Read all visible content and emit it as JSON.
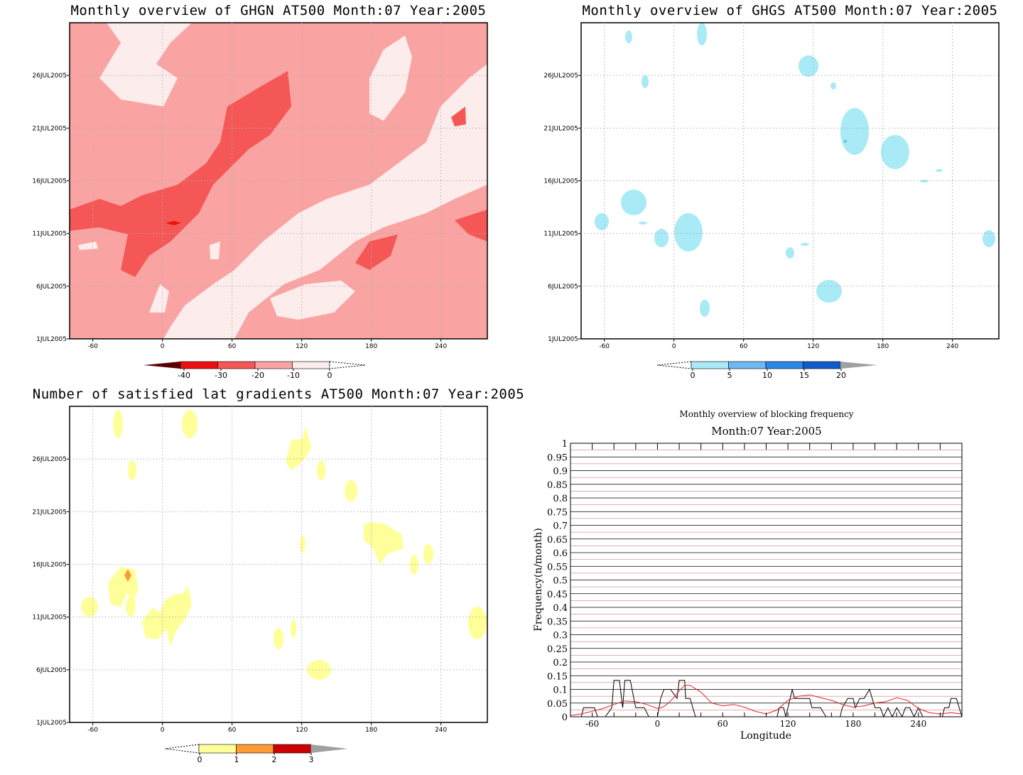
{
  "colors": {
    "ghgn": [
      "#fdecec",
      "#f9a3a3",
      "#f55656",
      "#ee1010",
      "#5a0000"
    ],
    "ghgs": [
      "#a8eaf6",
      "#6fb8f2",
      "#2c86e6",
      "#0f5cc8",
      "#a0a0a0"
    ],
    "grad": [
      "#ffff99",
      "#ff9933",
      "#cc0000",
      "#a0a0a0"
    ],
    "freq_series": [
      "#000000",
      "#e02020"
    ]
  },
  "chart_data": [
    {
      "type": "heatmap",
      "title": "Monthly overview of GHGN AT500 Month:07 Year:2005",
      "x_ticks": [
        "-60",
        "0",
        "60",
        "120",
        "180",
        "240"
      ],
      "y_ticks": [
        "1JUL2005",
        "6JUL2005",
        "11JUL2005",
        "16JUL2005",
        "21JUL2005",
        "26JUL2005"
      ],
      "xlim": [
        -80,
        280
      ],
      "colorbar": [
        "-40",
        "-30",
        "-20",
        "-10",
        "0"
      ]
    },
    {
      "type": "heatmap",
      "title": "Monthly overview of GHGS AT500 Month:07 Year:2005",
      "x_ticks": [
        "-60",
        "0",
        "60",
        "120",
        "180",
        "240"
      ],
      "y_ticks": [
        "1JUL2005",
        "6JUL2005",
        "11JUL2005",
        "16JUL2005",
        "21JUL2005",
        "26JUL2005"
      ],
      "xlim": [
        -80,
        280
      ],
      "colorbar": [
        "0",
        "5",
        "10",
        "15",
        "20"
      ]
    },
    {
      "type": "heatmap",
      "title": "Number of satisfied lat gradients AT500 Month:07 Year:2005",
      "x_ticks": [
        "-60",
        "0",
        "60",
        "120",
        "180",
        "240"
      ],
      "y_ticks": [
        "1JUL2005",
        "6JUL2005",
        "11JUL2005",
        "16JUL2005",
        "21JUL2005",
        "26JUL2005"
      ],
      "xlim": [
        -80,
        280
      ],
      "colorbar": [
        "0",
        "1",
        "2",
        "3"
      ]
    },
    {
      "type": "line",
      "title": "Monthly overview of blocking frequency",
      "subtitle": "Month:07 Year:2005",
      "xlabel": "Longitude",
      "ylabel": "Frequency(n/month)",
      "xlim": [
        -80,
        280
      ],
      "ylim": [
        0,
        1
      ],
      "x_ticks": [
        "-60",
        "0",
        "60",
        "120",
        "180",
        "240"
      ],
      "y_ticks": [
        "0",
        "0.05",
        "0.1",
        "0.15",
        "0.2",
        "0.25",
        "0.3",
        "0.35",
        "0.4",
        "0.45",
        "0.5",
        "0.55",
        "0.6",
        "0.65",
        "0.7",
        "0.75",
        "0.8",
        "0.85",
        "0.9",
        "0.95",
        "1"
      ],
      "series": [
        {
          "color": "#000000",
          "x": [
            -80,
            -70,
            -68,
            -58,
            -55,
            -48,
            -42,
            -40,
            -35,
            -32,
            -30,
            -25,
            -20,
            -12,
            -8,
            0,
            3,
            6,
            12,
            18,
            20,
            25,
            26,
            30,
            35,
            40,
            45,
            50,
            60,
            70,
            80,
            90,
            100,
            110,
            112,
            116,
            118,
            120,
            124,
            126,
            130,
            135,
            140,
            142,
            150,
            155,
            160,
            168,
            170,
            175,
            180,
            182,
            186,
            190,
            195,
            200,
            205,
            208,
            212,
            216,
            220,
            225,
            228,
            232,
            236,
            240,
            244,
            248,
            252,
            256,
            260,
            262,
            264,
            268,
            270,
            275,
            280
          ],
          "y": [
            0,
            0,
            0.033,
            0.033,
            0,
            0,
            0.033,
            0.133,
            0.133,
            0.033,
            0.133,
            0.133,
            0.033,
            0.033,
            0,
            0,
            0.067,
            0.1,
            0.1,
            0.067,
            0.133,
            0.133,
            0.067,
            0.067,
            0,
            0,
            0,
            0,
            0,
            0,
            0,
            0,
            0,
            0,
            0.033,
            0.033,
            0,
            0.033,
            0.1,
            0.067,
            0.067,
            0.067,
            0.067,
            0.033,
            0.033,
            0,
            0,
            0,
            0.033,
            0.067,
            0.067,
            0.033,
            0.067,
            0.067,
            0.1,
            0.033,
            0.033,
            0,
            0.033,
            0,
            0.033,
            0,
            0.033,
            0.033,
            0,
            0.033,
            0,
            0,
            0,
            0,
            0,
            0,
            0.033,
            0.033,
            0.067,
            0.067,
            0
          ]
        },
        {
          "color": "#e02020",
          "x": [
            -80,
            -70,
            -60,
            -50,
            -40,
            -30,
            -20,
            -10,
            0,
            5,
            10,
            15,
            20,
            25,
            30,
            40,
            50,
            60,
            70,
            80,
            90,
            100,
            110,
            120,
            130,
            140,
            150,
            160,
            170,
            180,
            190,
            200,
            210,
            220,
            230,
            240,
            250,
            260,
            270,
            280
          ],
          "y": [
            0.005,
            0.01,
            0.02,
            0.03,
            0.045,
            0.058,
            0.055,
            0.045,
            0.03,
            0.035,
            0.05,
            0.07,
            0.095,
            0.115,
            0.115,
            0.09,
            0.05,
            0.04,
            0.045,
            0.035,
            0.02,
            0.01,
            0.025,
            0.06,
            0.075,
            0.08,
            0.07,
            0.06,
            0.045,
            0.035,
            0.04,
            0.05,
            0.055,
            0.07,
            0.06,
            0.03,
            0.015,
            0.01,
            0.015,
            0.01
          ]
        }
      ]
    }
  ]
}
